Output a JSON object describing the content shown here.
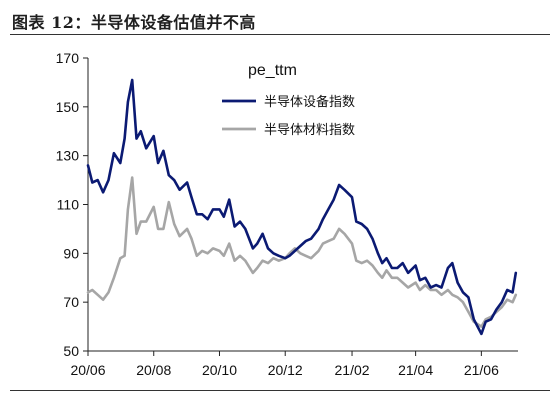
{
  "figure": {
    "title": "图表 12：半导体设备估值并不高"
  },
  "chart_data": {
    "type": "line",
    "legend_title": "pe_ttm",
    "legend_position": "top-center",
    "xlim": [
      "2020-06-01",
      "2021-07-05"
    ],
    "ylim": [
      50,
      170
    ],
    "y_ticks": [
      50,
      70,
      90,
      110,
      130,
      150,
      170
    ],
    "x_tick_dates": [
      "2020-06-01",
      "2020-08-01",
      "2020-10-01",
      "2020-12-01",
      "2021-02-01",
      "2021-04-01",
      "2021-06-01"
    ],
    "x_tick_labels": [
      "20/06",
      "20/08",
      "20/10",
      "20/12",
      "21/02",
      "21/04",
      "21/06"
    ],
    "grid": false,
    "series": [
      {
        "name": "半导体设备指数",
        "color": "#0b1a73",
        "points": [
          [
            "2020-06-01",
            126
          ],
          [
            "2020-06-05",
            119
          ],
          [
            "2020-06-10",
            120
          ],
          [
            "2020-06-15",
            115
          ],
          [
            "2020-06-20",
            120
          ],
          [
            "2020-06-25",
            131
          ],
          [
            "2020-07-01",
            127
          ],
          [
            "2020-07-05",
            137
          ],
          [
            "2020-07-08",
            152
          ],
          [
            "2020-07-12",
            161
          ],
          [
            "2020-07-16",
            137
          ],
          [
            "2020-07-20",
            140
          ],
          [
            "2020-07-25",
            133
          ],
          [
            "2020-08-01",
            138
          ],
          [
            "2020-08-05",
            127
          ],
          [
            "2020-08-10",
            132
          ],
          [
            "2020-08-15",
            122
          ],
          [
            "2020-08-20",
            120
          ],
          [
            "2020-08-25",
            116
          ],
          [
            "2020-09-01",
            119
          ],
          [
            "2020-09-05",
            113
          ],
          [
            "2020-09-10",
            106
          ],
          [
            "2020-09-15",
            106
          ],
          [
            "2020-09-20",
            104
          ],
          [
            "2020-09-25",
            108
          ],
          [
            "2020-10-01",
            108
          ],
          [
            "2020-10-05",
            105
          ],
          [
            "2020-10-10",
            112
          ],
          [
            "2020-10-15",
            101
          ],
          [
            "2020-10-20",
            103
          ],
          [
            "2020-10-25",
            100
          ],
          [
            "2020-11-01",
            92
          ],
          [
            "2020-11-05",
            94
          ],
          [
            "2020-11-10",
            98
          ],
          [
            "2020-11-15",
            92
          ],
          [
            "2020-11-20",
            90
          ],
          [
            "2020-11-25",
            89
          ],
          [
            "2020-12-01",
            88
          ],
          [
            "2020-12-05",
            89
          ],
          [
            "2020-12-10",
            91
          ],
          [
            "2020-12-15",
            93
          ],
          [
            "2020-12-20",
            95
          ],
          [
            "2020-12-25",
            96
          ],
          [
            "2021-01-01",
            100
          ],
          [
            "2021-01-05",
            104
          ],
          [
            "2021-01-10",
            108
          ],
          [
            "2021-01-15",
            112
          ],
          [
            "2021-01-20",
            118
          ],
          [
            "2021-01-25",
            116
          ],
          [
            "2021-02-01",
            113
          ],
          [
            "2021-02-05",
            103
          ],
          [
            "2021-02-10",
            102
          ],
          [
            "2021-02-15",
            100
          ],
          [
            "2021-02-20",
            96
          ],
          [
            "2021-02-25",
            90
          ],
          [
            "2021-03-01",
            86
          ],
          [
            "2021-03-05",
            88
          ],
          [
            "2021-03-10",
            84
          ],
          [
            "2021-03-15",
            84
          ],
          [
            "2021-03-20",
            86
          ],
          [
            "2021-03-25",
            82
          ],
          [
            "2021-04-01",
            85
          ],
          [
            "2021-04-05",
            79
          ],
          [
            "2021-04-10",
            80
          ],
          [
            "2021-04-15",
            76
          ],
          [
            "2021-04-20",
            77
          ],
          [
            "2021-04-25",
            76
          ],
          [
            "2021-05-01",
            84
          ],
          [
            "2021-05-05",
            86
          ],
          [
            "2021-05-10",
            78
          ],
          [
            "2021-05-15",
            74
          ],
          [
            "2021-05-20",
            72
          ],
          [
            "2021-05-25",
            63
          ],
          [
            "2021-06-01",
            57
          ],
          [
            "2021-06-05",
            62
          ],
          [
            "2021-06-10",
            63
          ],
          [
            "2021-06-15",
            67
          ],
          [
            "2021-06-20",
            70
          ],
          [
            "2021-06-25",
            75
          ],
          [
            "2021-06-30",
            74
          ],
          [
            "2021-07-03",
            82
          ]
        ]
      },
      {
        "name": "半导体材料指数",
        "color": "#a6a6a6",
        "points": [
          [
            "2020-06-01",
            74
          ],
          [
            "2020-06-05",
            75
          ],
          [
            "2020-06-10",
            73
          ],
          [
            "2020-06-15",
            71
          ],
          [
            "2020-06-20",
            74
          ],
          [
            "2020-06-25",
            80
          ],
          [
            "2020-07-01",
            88
          ],
          [
            "2020-07-05",
            89
          ],
          [
            "2020-07-08",
            108
          ],
          [
            "2020-07-12",
            121
          ],
          [
            "2020-07-16",
            98
          ],
          [
            "2020-07-20",
            103
          ],
          [
            "2020-07-25",
            103
          ],
          [
            "2020-08-01",
            109
          ],
          [
            "2020-08-05",
            100
          ],
          [
            "2020-08-10",
            100
          ],
          [
            "2020-08-15",
            111
          ],
          [
            "2020-08-20",
            102
          ],
          [
            "2020-08-25",
            97
          ],
          [
            "2020-09-01",
            100
          ],
          [
            "2020-09-05",
            96
          ],
          [
            "2020-09-10",
            89
          ],
          [
            "2020-09-15",
            91
          ],
          [
            "2020-09-20",
            90
          ],
          [
            "2020-09-25",
            92
          ],
          [
            "2020-10-01",
            91
          ],
          [
            "2020-10-05",
            89
          ],
          [
            "2020-10-10",
            94
          ],
          [
            "2020-10-15",
            87
          ],
          [
            "2020-10-20",
            89
          ],
          [
            "2020-10-25",
            87
          ],
          [
            "2020-11-01",
            82
          ],
          [
            "2020-11-05",
            84
          ],
          [
            "2020-11-10",
            87
          ],
          [
            "2020-11-15",
            86
          ],
          [
            "2020-11-20",
            88
          ],
          [
            "2020-11-25",
            87
          ],
          [
            "2020-12-01",
            88
          ],
          [
            "2020-12-05",
            90
          ],
          [
            "2020-12-10",
            92
          ],
          [
            "2020-12-15",
            90
          ],
          [
            "2020-12-20",
            89
          ],
          [
            "2020-12-25",
            88
          ],
          [
            "2021-01-01",
            91
          ],
          [
            "2021-01-05",
            94
          ],
          [
            "2021-01-10",
            95
          ],
          [
            "2021-01-15",
            96
          ],
          [
            "2021-01-20",
            100
          ],
          [
            "2021-01-25",
            98
          ],
          [
            "2021-02-01",
            94
          ],
          [
            "2021-02-05",
            87
          ],
          [
            "2021-02-10",
            86
          ],
          [
            "2021-02-15",
            87
          ],
          [
            "2021-02-20",
            85
          ],
          [
            "2021-02-25",
            82
          ],
          [
            "2021-03-01",
            80
          ],
          [
            "2021-03-05",
            83
          ],
          [
            "2021-03-10",
            80
          ],
          [
            "2021-03-15",
            80
          ],
          [
            "2021-03-20",
            78
          ],
          [
            "2021-03-25",
            76
          ],
          [
            "2021-04-01",
            78
          ],
          [
            "2021-04-05",
            75
          ],
          [
            "2021-04-10",
            77
          ],
          [
            "2021-04-15",
            75
          ],
          [
            "2021-04-20",
            75
          ],
          [
            "2021-04-25",
            73
          ],
          [
            "2021-05-01",
            75
          ],
          [
            "2021-05-05",
            73
          ],
          [
            "2021-05-10",
            72
          ],
          [
            "2021-05-15",
            70
          ],
          [
            "2021-05-20",
            66
          ],
          [
            "2021-05-25",
            62
          ],
          [
            "2021-06-01",
            60
          ],
          [
            "2021-06-05",
            63
          ],
          [
            "2021-06-10",
            64
          ],
          [
            "2021-06-15",
            66
          ],
          [
            "2021-06-20",
            68
          ],
          [
            "2021-06-25",
            71
          ],
          [
            "2021-06-30",
            70
          ],
          [
            "2021-07-03",
            73
          ]
        ]
      }
    ]
  }
}
